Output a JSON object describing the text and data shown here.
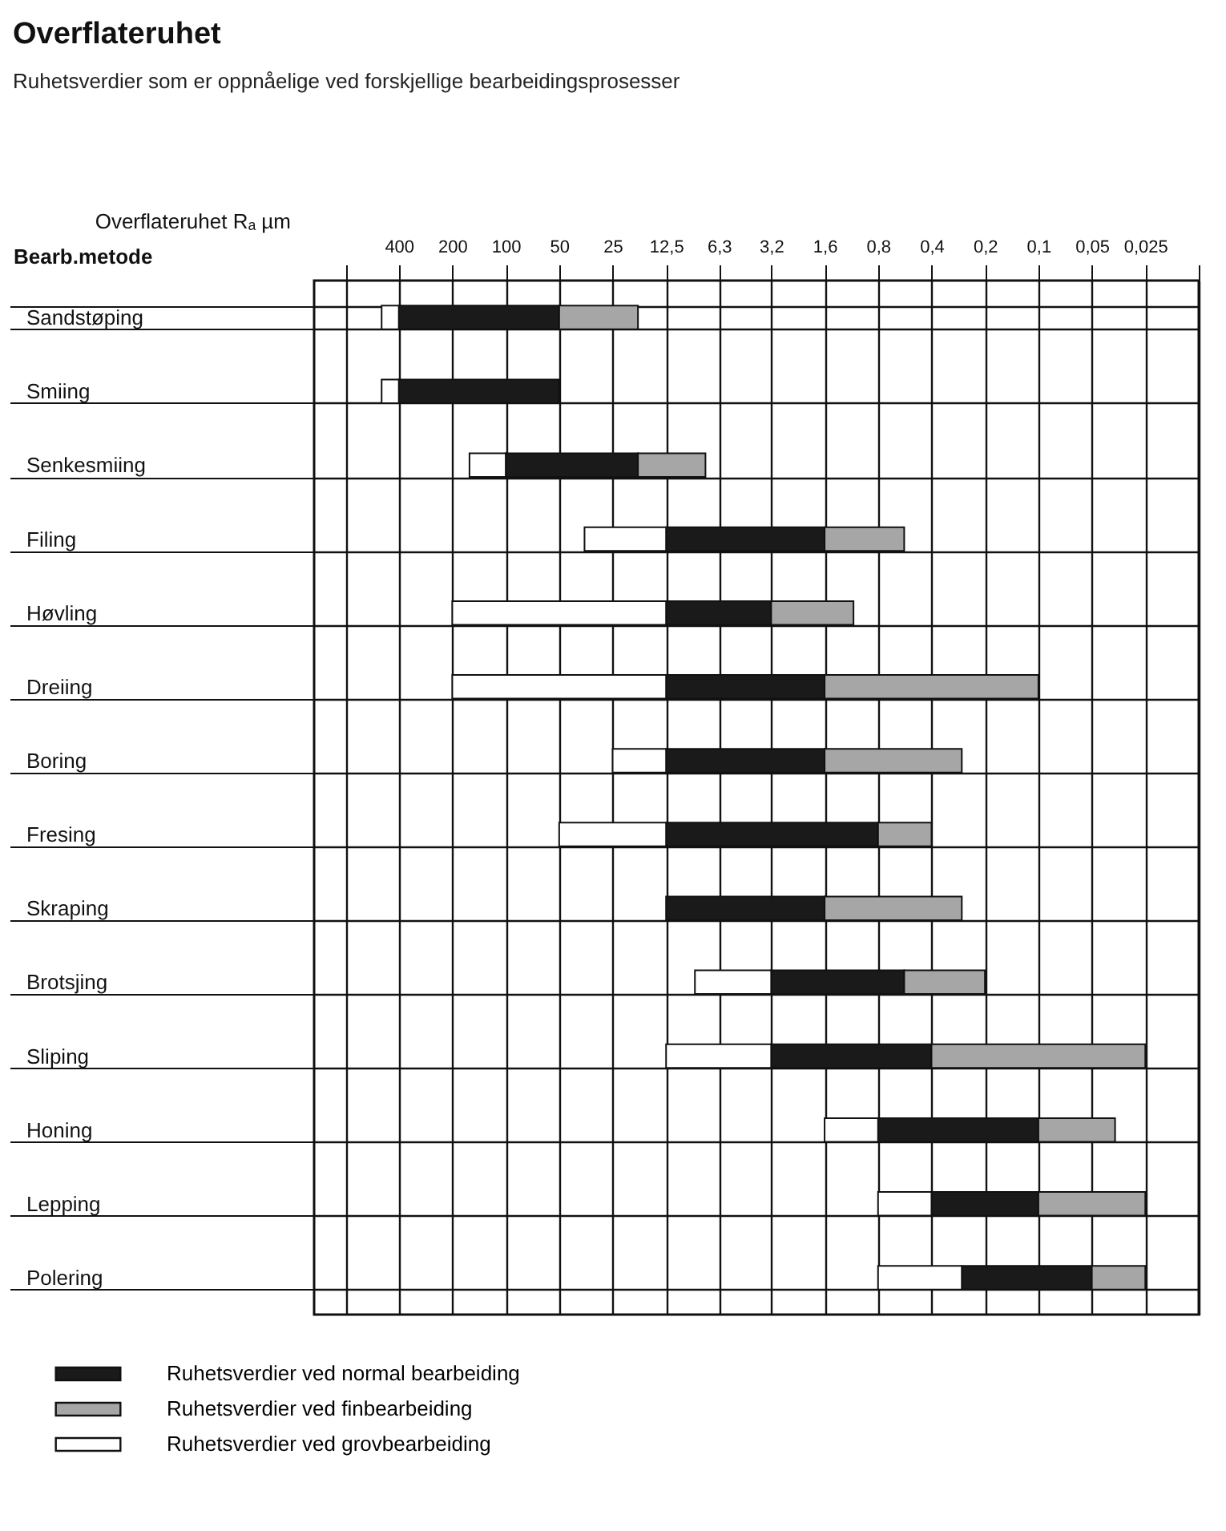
{
  "chart_data": {
    "type": "bar",
    "orientation": "horizontal",
    "title": "Overflateruhet",
    "subtitle": "Ruhetsverdier som er oppnåelige ved forskjellige bearbeidingsprosesser",
    "xlabel": "Overflateruhet Rₐ µm",
    "ylabel": "Bearb.metode",
    "categories": [
      "Sandstøping",
      "Smiing",
      "Senkesmiing",
      "Filing",
      "Høvling",
      "Dreiing",
      "Boring",
      "Fresing",
      "Skraping",
      "Brotsjing",
      "Sliping",
      "Honing",
      "Lepping",
      "Polering"
    ],
    "series": [
      {
        "name": "Ruhetsverdier ved normal bearbeiding",
        "color": "#1a1a1a",
        "base": [
          50,
          50,
          18,
          1.6,
          3.2,
          1.6,
          1.6,
          0.8,
          1.6,
          0.57,
          0.4,
          0.1,
          0.1,
          0.05
        ],
        "values": [
          350,
          350,
          82,
          10.9,
          9.3,
          10.9,
          10.9,
          11.7,
          10.9,
          2.63,
          2.8,
          0.7,
          0.3,
          0.22
        ]
      },
      {
        "name": "Ruhetsverdier ved finbearbeiding",
        "color": "#a6a6a6",
        "base": [
          18,
          null,
          7.5,
          0.57,
          1.1,
          0.1,
          0.27,
          0.4,
          0.27,
          0.2,
          0.025,
          0.037,
          0.025,
          0.025
        ],
        "values": [
          32,
          null,
          10.5,
          1.03,
          2.1,
          1.5,
          1.33,
          0.4,
          1.33,
          0.37,
          0.375,
          0.063,
          0.075,
          0.025
        ]
      },
      {
        "name": "Ruhetsverdier ved grovbearbeiding",
        "color": "#ffffff",
        "base": [
          400,
          400,
          100,
          12.5,
          12.5,
          12.5,
          12.5,
          12.5,
          null,
          3.2,
          3.2,
          0.8,
          0.4,
          0.27
        ],
        "values": [
          100,
          100,
          60,
          23.5,
          187.5,
          187.5,
          12.5,
          37.5,
          null,
          5.4,
          9.3,
          0.8,
          0.4,
          0.53
        ]
      }
    ],
    "log": "x",
    "xlim": [
      1200,
      0.0125
    ],
    "xticks": [
      {
        "value": 800,
        "label": null
      },
      400,
      200,
      100,
      50,
      25,
      {
        "value": 12.5,
        "label": "12,5"
      },
      {
        "value": 6.3,
        "label": "6,3"
      },
      {
        "value": 3.2,
        "label": "3,2"
      },
      {
        "value": 1.6,
        "label": "1,6"
      },
      {
        "value": 0.8,
        "label": "0,8"
      },
      {
        "value": 0.4,
        "label": "0,4"
      },
      {
        "value": 0.2,
        "label": "0,2"
      },
      {
        "value": 0.1,
        "label": "0,1"
      },
      {
        "value": 0.05,
        "label": "0,05"
      },
      {
        "value": 0.025,
        "label": "0,025"
      },
      {
        "value": 0.0125,
        "label": null
      }
    ],
    "grid": true,
    "legend": "bottom left"
  }
}
